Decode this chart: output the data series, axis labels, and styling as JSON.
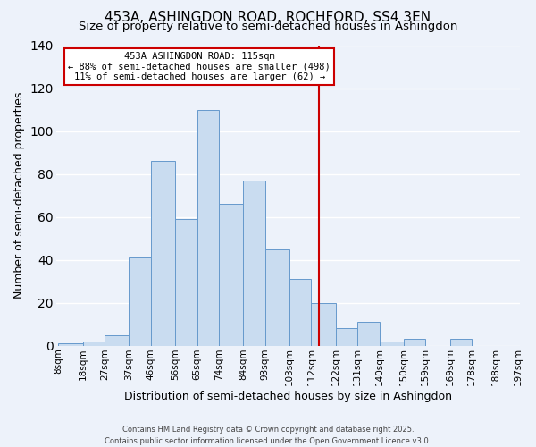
{
  "title": "453A, ASHINGDON ROAD, ROCHFORD, SS4 3EN",
  "subtitle": "Size of property relative to semi-detached houses in Ashingdon",
  "xlabel": "Distribution of semi-detached houses by size in Ashingdon",
  "ylabel": "Number of semi-detached properties",
  "bins": [
    8,
    18,
    27,
    37,
    46,
    56,
    65,
    74,
    84,
    93,
    103,
    112,
    122,
    131,
    140,
    150,
    159,
    169,
    178,
    188,
    197
  ],
  "bar_heights": [
    1,
    2,
    5,
    41,
    86,
    59,
    110,
    66,
    77,
    45,
    31,
    20,
    8,
    11,
    2,
    3,
    0,
    3,
    0,
    0
  ],
  "bar_color": "#c9dcf0",
  "bar_edgecolor": "#6699cc",
  "tick_labels": [
    "8sqm",
    "18sqm",
    "27sqm",
    "37sqm",
    "46sqm",
    "56sqm",
    "65sqm",
    "74sqm",
    "84sqm",
    "93sqm",
    "103sqm",
    "112sqm",
    "122sqm",
    "131sqm",
    "140sqm",
    "150sqm",
    "159sqm",
    "169sqm",
    "178sqm",
    "188sqm",
    "197sqm"
  ],
  "property_line_x": 115,
  "ylim": [
    0,
    140
  ],
  "annotation_title": "453A ASHINGDON ROAD: 115sqm",
  "annotation_line1": "← 88% of semi-detached houses are smaller (498)",
  "annotation_line2": "11% of semi-detached houses are larger (62) →",
  "vline_color": "#cc0000",
  "footer1": "Contains HM Land Registry data © Crown copyright and database right 2025.",
  "footer2": "Contains public sector information licensed under the Open Government Licence v3.0.",
  "background_color": "#edf2fa",
  "grid_color": "#ffffff",
  "title_fontsize": 11,
  "subtitle_fontsize": 9.5,
  "axis_label_fontsize": 9,
  "tick_fontsize": 7.5,
  "footer_fontsize": 6
}
